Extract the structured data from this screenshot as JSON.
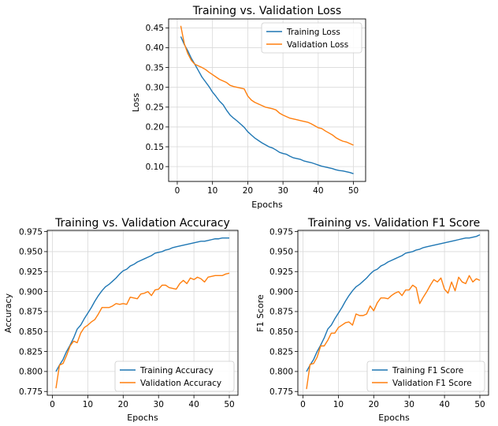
{
  "colors": {
    "train": "#1f77b4",
    "val": "#ff7f0e",
    "grid": "#d9d9d9",
    "axis": "#000000"
  },
  "chart_data": [
    {
      "type": "line",
      "title": "Training vs. Validation Loss",
      "xlabel": "Epochs",
      "ylabel": "Loss",
      "xlim": [
        -2.45,
        53.45
      ],
      "ylim": [
        0.0625,
        0.4725
      ],
      "xticks": [
        "0",
        "10",
        "20",
        "30",
        "40",
        "50"
      ],
      "yticks": [
        "0.10",
        "0.15",
        "0.20",
        "0.25",
        "0.30",
        "0.35",
        "0.40",
        "0.45"
      ],
      "grid": true,
      "legend_position": "upper-right",
      "series": [
        {
          "name": "Training Loss",
          "x": [
            1,
            2,
            3,
            4,
            5,
            6,
            7,
            8,
            9,
            10,
            11,
            12,
            13,
            14,
            15,
            16,
            17,
            18,
            19,
            20,
            21,
            22,
            23,
            24,
            25,
            26,
            27,
            28,
            29,
            30,
            31,
            32,
            33,
            34,
            35,
            36,
            37,
            38,
            39,
            40,
            41,
            42,
            43,
            44,
            45,
            46,
            47,
            48,
            49,
            50
          ],
          "values": [
            0.428,
            0.408,
            0.392,
            0.373,
            0.358,
            0.342,
            0.326,
            0.314,
            0.302,
            0.288,
            0.277,
            0.265,
            0.256,
            0.242,
            0.23,
            0.222,
            0.215,
            0.207,
            0.199,
            0.188,
            0.18,
            0.172,
            0.166,
            0.16,
            0.155,
            0.15,
            0.147,
            0.142,
            0.136,
            0.133,
            0.131,
            0.126,
            0.122,
            0.12,
            0.118,
            0.114,
            0.112,
            0.11,
            0.107,
            0.104,
            0.101,
            0.099,
            0.097,
            0.095,
            0.092,
            0.09,
            0.089,
            0.087,
            0.085,
            0.082
          ]
        },
        {
          "name": "Validation Loss",
          "x": [
            1,
            2,
            3,
            4,
            5,
            6,
            7,
            8,
            9,
            10,
            11,
            12,
            13,
            14,
            15,
            16,
            17,
            18,
            19,
            20,
            21,
            22,
            23,
            24,
            25,
            26,
            27,
            28,
            29,
            30,
            31,
            32,
            33,
            34,
            35,
            36,
            37,
            38,
            39,
            40,
            41,
            42,
            43,
            44,
            45,
            46,
            47,
            48,
            49,
            50
          ],
          "values": [
            0.455,
            0.41,
            0.385,
            0.368,
            0.358,
            0.354,
            0.35,
            0.345,
            0.338,
            0.332,
            0.326,
            0.32,
            0.316,
            0.312,
            0.305,
            0.302,
            0.3,
            0.298,
            0.296,
            0.278,
            0.268,
            0.262,
            0.258,
            0.254,
            0.25,
            0.248,
            0.246,
            0.243,
            0.235,
            0.23,
            0.226,
            0.222,
            0.22,
            0.218,
            0.216,
            0.214,
            0.212,
            0.208,
            0.203,
            0.198,
            0.196,
            0.19,
            0.185,
            0.18,
            0.173,
            0.168,
            0.164,
            0.162,
            0.158,
            0.154
          ]
        }
      ]
    },
    {
      "type": "line",
      "title": "Training vs. Validation Accuracy",
      "xlabel": "Epochs",
      "ylabel": "Accuracy",
      "xlim": [
        -1.45,
        52.45
      ],
      "ylim": [
        0.7703,
        0.9766
      ],
      "xticks": [
        "0",
        "10",
        "20",
        "30",
        "40",
        "50"
      ],
      "yticks": [
        "0.775",
        "0.800",
        "0.825",
        "0.850",
        "0.875",
        "0.900",
        "0.925",
        "0.950",
        "0.975"
      ],
      "grid": true,
      "legend_position": "lower-right",
      "series": [
        {
          "name": "Training Accuracy",
          "x": [
            1,
            2,
            3,
            4,
            5,
            6,
            7,
            8,
            9,
            10,
            11,
            12,
            13,
            14,
            15,
            16,
            17,
            18,
            19,
            20,
            21,
            22,
            23,
            24,
            25,
            26,
            27,
            28,
            29,
            30,
            31,
            32,
            33,
            34,
            35,
            36,
            37,
            38,
            39,
            40,
            41,
            42,
            43,
            44,
            45,
            46,
            47,
            48,
            49,
            50
          ],
          "values": [
            0.8,
            0.808,
            0.815,
            0.825,
            0.833,
            0.842,
            0.853,
            0.858,
            0.866,
            0.873,
            0.88,
            0.888,
            0.895,
            0.901,
            0.906,
            0.909,
            0.913,
            0.917,
            0.922,
            0.926,
            0.928,
            0.932,
            0.934,
            0.937,
            0.939,
            0.941,
            0.943,
            0.945,
            0.948,
            0.949,
            0.95,
            0.952,
            0.953,
            0.955,
            0.956,
            0.957,
            0.958,
            0.959,
            0.96,
            0.961,
            0.962,
            0.963,
            0.963,
            0.964,
            0.965,
            0.966,
            0.966,
            0.967,
            0.967,
            0.967
          ]
        },
        {
          "name": "Validation Accuracy",
          "x": [
            1,
            2,
            3,
            4,
            5,
            6,
            7,
            8,
            9,
            10,
            11,
            12,
            13,
            14,
            15,
            16,
            17,
            18,
            19,
            20,
            21,
            22,
            23,
            24,
            25,
            26,
            27,
            28,
            29,
            30,
            31,
            32,
            33,
            34,
            35,
            36,
            37,
            38,
            39,
            40,
            41,
            42,
            43,
            44,
            45,
            46,
            47,
            48,
            49,
            50
          ],
          "values": [
            0.779,
            0.808,
            0.81,
            0.82,
            0.832,
            0.838,
            0.836,
            0.848,
            0.855,
            0.858,
            0.862,
            0.865,
            0.872,
            0.88,
            0.88,
            0.88,
            0.882,
            0.885,
            0.884,
            0.885,
            0.884,
            0.893,
            0.892,
            0.891,
            0.897,
            0.898,
            0.9,
            0.895,
            0.902,
            0.903,
            0.908,
            0.908,
            0.905,
            0.904,
            0.903,
            0.91,
            0.914,
            0.91,
            0.917,
            0.915,
            0.918,
            0.916,
            0.912,
            0.918,
            0.919,
            0.92,
            0.92,
            0.92,
            0.922,
            0.923
          ]
        }
      ]
    },
    {
      "type": "line",
      "title": "Training vs. Validation F1 Score",
      "xlabel": "Epochs",
      "ylabel": "F1 Score",
      "xlim": [
        -1.45,
        52.45
      ],
      "ylim": [
        0.7703,
        0.9766
      ],
      "xticks": [
        "0",
        "10",
        "20",
        "30",
        "40",
        "50"
      ],
      "yticks": [
        "0.775",
        "0.800",
        "0.825",
        "0.850",
        "0.875",
        "0.900",
        "0.925",
        "0.950",
        "0.975"
      ],
      "grid": true,
      "legend_position": "lower-right",
      "series": [
        {
          "name": "Training F1 Score",
          "x": [
            1,
            2,
            3,
            4,
            5,
            6,
            7,
            8,
            9,
            10,
            11,
            12,
            13,
            14,
            15,
            16,
            17,
            18,
            19,
            20,
            21,
            22,
            23,
            24,
            25,
            26,
            27,
            28,
            29,
            30,
            31,
            32,
            33,
            34,
            35,
            36,
            37,
            38,
            39,
            40,
            41,
            42,
            43,
            44,
            45,
            46,
            47,
            48,
            49,
            50
          ],
          "values": [
            0.8,
            0.808,
            0.815,
            0.825,
            0.833,
            0.842,
            0.853,
            0.858,
            0.866,
            0.873,
            0.88,
            0.888,
            0.895,
            0.901,
            0.906,
            0.909,
            0.913,
            0.917,
            0.922,
            0.926,
            0.928,
            0.932,
            0.934,
            0.937,
            0.939,
            0.941,
            0.943,
            0.945,
            0.948,
            0.949,
            0.95,
            0.952,
            0.953,
            0.955,
            0.956,
            0.957,
            0.958,
            0.959,
            0.96,
            0.961,
            0.962,
            0.963,
            0.964,
            0.965,
            0.966,
            0.967,
            0.967,
            0.968,
            0.969,
            0.971
          ]
        },
        {
          "name": "Validation F1 Score",
          "x": [
            1,
            2,
            3,
            4,
            5,
            6,
            7,
            8,
            9,
            10,
            11,
            12,
            13,
            14,
            15,
            16,
            17,
            18,
            19,
            20,
            21,
            22,
            23,
            24,
            25,
            26,
            27,
            28,
            29,
            30,
            31,
            32,
            33,
            34,
            35,
            36,
            37,
            38,
            39,
            40,
            41,
            42,
            43,
            44,
            45,
            46,
            47,
            48,
            49,
            50
          ],
          "values": [
            0.778,
            0.809,
            0.81,
            0.818,
            0.832,
            0.832,
            0.839,
            0.848,
            0.848,
            0.855,
            0.858,
            0.861,
            0.862,
            0.858,
            0.872,
            0.87,
            0.87,
            0.872,
            0.882,
            0.876,
            0.886,
            0.892,
            0.892,
            0.891,
            0.895,
            0.898,
            0.9,
            0.895,
            0.902,
            0.902,
            0.908,
            0.905,
            0.885,
            0.893,
            0.9,
            0.908,
            0.915,
            0.912,
            0.917,
            0.903,
            0.898,
            0.912,
            0.901,
            0.918,
            0.912,
            0.91,
            0.92,
            0.912,
            0.916,
            0.914
          ]
        }
      ]
    }
  ]
}
